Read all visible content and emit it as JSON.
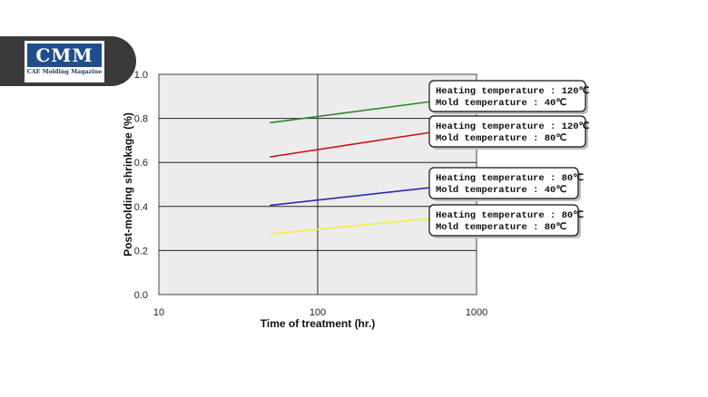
{
  "logo": {
    "mark": "CMM",
    "tagline": "CAE Molding Magazine"
  },
  "chart_data": {
    "type": "line",
    "xlabel": "Time of treatment (hr.)",
    "ylabel": "Post-molding shrinkage (%)",
    "xscale": "log",
    "xlim": [
      10,
      1000
    ],
    "ylim": [
      0,
      1.0
    ],
    "xticks": [
      "10",
      "100",
      "1000"
    ],
    "yticks": [
      "0.0",
      "0.2",
      "0.4",
      "0.6",
      "0.8",
      "1.0"
    ],
    "grid": true,
    "series": [
      {
        "color": "#2a8a2a",
        "x": [
          50,
          500
        ],
        "y": [
          0.78,
          0.875
        ],
        "label_lines": [
          "Heating temperature : 120℃",
          "Mold temperature : 40℃"
        ]
      },
      {
        "color": "#cc1111",
        "x": [
          50,
          500
        ],
        "y": [
          0.625,
          0.735
        ],
        "label_lines": [
          "Heating temperature : 120℃",
          "Mold temperature : 80℃"
        ]
      },
      {
        "color": "#2a2ab0",
        "x": [
          50,
          500
        ],
        "y": [
          0.405,
          0.485
        ],
        "label_lines": [
          "Heating temperature : 80℃",
          "Mold temperature : 40℃"
        ]
      },
      {
        "color": "#f0f040",
        "x": [
          50,
          500
        ],
        "y": [
          0.275,
          0.345
        ],
        "label_lines": [
          "Heating temperature : 80℃",
          "Mold temperature : 80℃"
        ]
      }
    ]
  }
}
